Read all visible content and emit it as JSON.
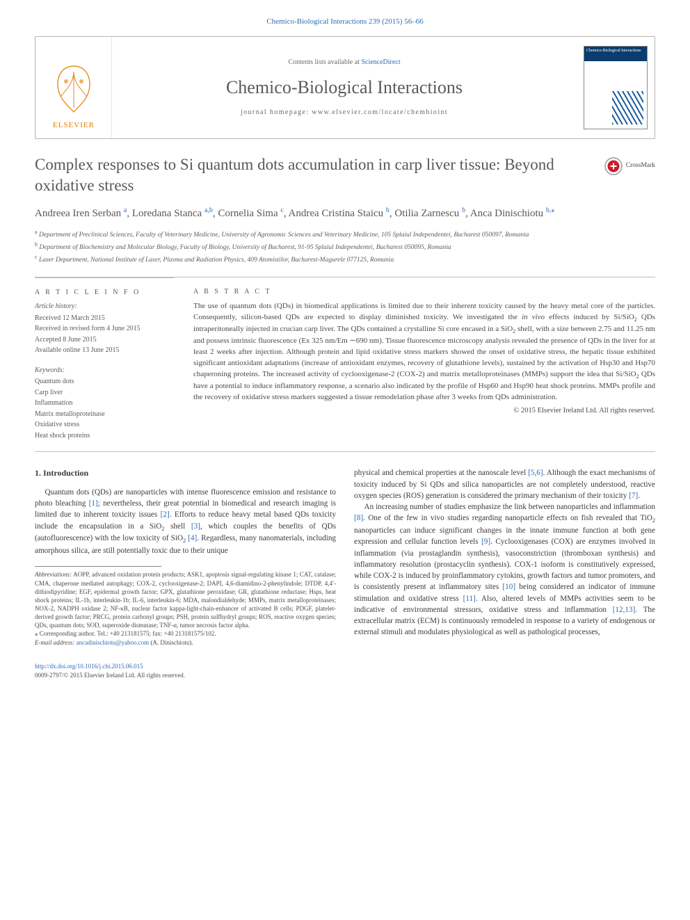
{
  "header": {
    "citation": "Chemico-Biological Interactions 239 (2015) 56–66",
    "contents_prefix": "Contents lists available at ",
    "contents_link": "ScienceDirect",
    "journal_name": "Chemico-Biological Interactions",
    "homepage_prefix": "journal homepage: ",
    "homepage_url": "www.elsevier.com/locate/chembioint",
    "publisher": "ELSEVIER",
    "cover_label": "Chemico-Biological Interactions"
  },
  "crossmark": "CrossMark",
  "title": "Complex responses to Si quantum dots accumulation in carp liver tissue: Beyond oxidative stress",
  "authors": [
    {
      "name": "Andreea Iren Serban",
      "aff": "a"
    },
    {
      "name": "Loredana Stanca",
      "aff": "a,b"
    },
    {
      "name": "Cornelia Sima",
      "aff": "c"
    },
    {
      "name": "Andrea Cristina Staicu",
      "aff": "b"
    },
    {
      "name": "Otilia Zarnescu",
      "aff": "b"
    },
    {
      "name": "Anca Dinischiotu",
      "aff": "b,",
      "corr": true
    }
  ],
  "affiliations": [
    {
      "sup": "a",
      "text": "Department of Preclinical Sciences, Faculty of Veterinary Medicine, University of Agronomic Sciences and Veterinary Medicine, 105 Splaiul Independentei, Bucharest 050097, Romania"
    },
    {
      "sup": "b",
      "text": "Department of Biochemistry and Molecular Biology, Faculty of Biology, University of Bucharest, 91-95 Splaiul Independentei, Bucharest 050095, Romania"
    },
    {
      "sup": "c",
      "text": "Laser Department, National Institute of Laser, Plasma and Radiation Physics, 409 Atomistilor, Bucharest-Magurele 077125, Romania"
    }
  ],
  "info": {
    "heading": "A R T I C L E   I N F O",
    "history_heading": "Article history:",
    "history": [
      "Received 12 March 2015",
      "Received in revised form 4 June 2015",
      "Accepted 8 June 2015",
      "Available online 13 June 2015"
    ],
    "keywords_heading": "Keywords:",
    "keywords": [
      "Quantum dots",
      "Carp liver",
      "Inflammation",
      "Matrix metalloproteinase",
      "Oxidative stress",
      "Heat shock proteins"
    ]
  },
  "abstract": {
    "heading": "A B S T R A C T",
    "text": "The use of quantum dots (QDs) in biomedical applications is limited due to their inherent toxicity caused by the heavy metal core of the particles. Consequently, silicon-based QDs are expected to display diminished toxicity. We investigated the in vivo effects induced by Si/SiO₂ QDs intraperitoneally injected in crucian carp liver. The QDs contained a crystalline Si core encased in a SiO₂ shell, with a size between 2.75 and 11.25 nm and possess intrinsic fluorescence (Ex 325 nm/Em ∼690 nm). Tissue fluorescence microscopy analysis revealed the presence of QDs in the liver for at least 2 weeks after injection. Although protein and lipid oxidative stress markers showed the onset of oxidative stress, the hepatic tissue exhibited significant antioxidant adaptations (increase of antioxidant enzymes, recovery of glutathione levels), sustained by the activation of Hsp30 and Hsp70 chaperoning proteins. The increased activity of cyclooxigenase-2 (COX-2) and matrix metalloproteinases (MMPs) support the idea that Si/SiO₂ QDs have a potential to induce inflammatory response, a scenario also indicated by the profile of Hsp60 and Hsp90 heat shock proteins. MMPs profile and the recovery of oxidative stress markers suggested a tissue remodelation phase after 3 weeks from QDs administration.",
    "copyright": "© 2015 Elsevier Ireland Ltd. All rights reserved."
  },
  "body": {
    "section_heading": "1. Introduction",
    "para1": "Quantum dots (QDs) are nanoparticles with intense fluorescence emission and resistance to photo bleaching [1]; nevertheless, their great potential in biomedical and research imaging is limited due to inherent toxicity issues [2]. Efforts to reduce heavy metal based QDs toxicity include the encapsulation in a SiO₂ shell [3], which couples the benefits of QDs (autofluorescence) with the low toxicity of SiO₂ [4]. Regardless, many nanomaterials, including amorphous silica, are still potentially toxic due to their unique ",
    "para1b": "physical and chemical properties at the nanoscale level [5,6]. Although the exact mechanisms of toxicity induced by Si QDs and silica nanoparticles are not completely understood, reactive oxygen species (ROS) generation is considered the primary mechanism of their toxicity [7].",
    "para2": "An increasing number of studies emphasize the link between nanoparticles and inflammation [8]. One of the few in vivo studies regarding nanoparticle effects on fish revealed that TiO₂ nanoparticles can induce significant changes in the innate immune function at both gene expression and cellular function levels [9]. Cyclooxigenases (COX) are enzymes involved in inflammation (via prostaglandin synthesis), vasoconstriction (thromboxan synthesis) and inflammatory resolution (prostacyclin synthesis). COX-1 isoform is constitutively expressed, while COX-2 is induced by proinflammatory cytokins, growth factors and tumor promoters, and is consistently present at inflammatory sites [10] being considered an indicator of immune stimulation and oxidative stress [11]. Also, altered levels of MMPs activities seem to be indicative of environmental stressors, oxidative stress and inflammation [12,13]. The extracellular matrix (ECM) is continuously remodeled in response to a variety of endogenous or external stimuli and modulates physiological as well as pathological processes,"
  },
  "footnotes": {
    "abbr_label": "Abbreviations:",
    "abbr": " AOPP, advanced oxidation protein products; ASK1, apoptosis signal-regulating kinase 1; CAT, catalase; CMA, chaperone mediated autophagy; COX-2, cyclooxigenase-2; DAPI, 4,6-diamidino-2-phenylindole; DTDP, 4,4′-dithiodipyridine; EGF, epidermal growth factor; GPX, glutathione peroxidase; GR, glutathione reductase; Hsps, heat shock proteins; IL-1b, interleukin-1b; IL-6, interleukin-6; MDA, malondialdehyde; MMPs, matrix metalloproteinases; NOX-2, NADPH oxidase 2; NF-κB, nuclear factor kappa-light-chain-enhancer of activated B cells; PDGF, platelet-derived growth factor; PRCG, protein carbonyl groups; PSH, protein sulfhydryl groups; ROS, reactive oxygen species; QDs, quantum dots; SOD, superoxide dismutase; TNF-α, tumor necrosis factor alpha.",
    "corr_symbol": "⁎",
    "corr_text": " Corresponding author. Tel.: +40 213181575; fax: +40 213181575/102.",
    "email_label": "E-mail address: ",
    "email": "ancadinischiotu@yahoo.com",
    "email_who": " (A. Dinischiotu)."
  },
  "footer": {
    "doi": "http://dx.doi.org/10.1016/j.cbi.2015.06.015",
    "issn_line": "0009-2797/© 2015 Elsevier Ireland Ltd. All rights reserved."
  },
  "refs": {
    "r1": "[1]",
    "r2": "[2]",
    "r3": "[3]",
    "r4": "[4]",
    "r56": "[5,6]",
    "r7": "[7]",
    "r8": "[8]",
    "r9": "[9]",
    "r10": "[10]",
    "r11": "[11]",
    "r1213": "[12,13]"
  },
  "colors": {
    "link": "#2a6db5",
    "text": "#3d3d3d",
    "muted": "#5a5a5a",
    "rule": "#b5b5b5"
  }
}
